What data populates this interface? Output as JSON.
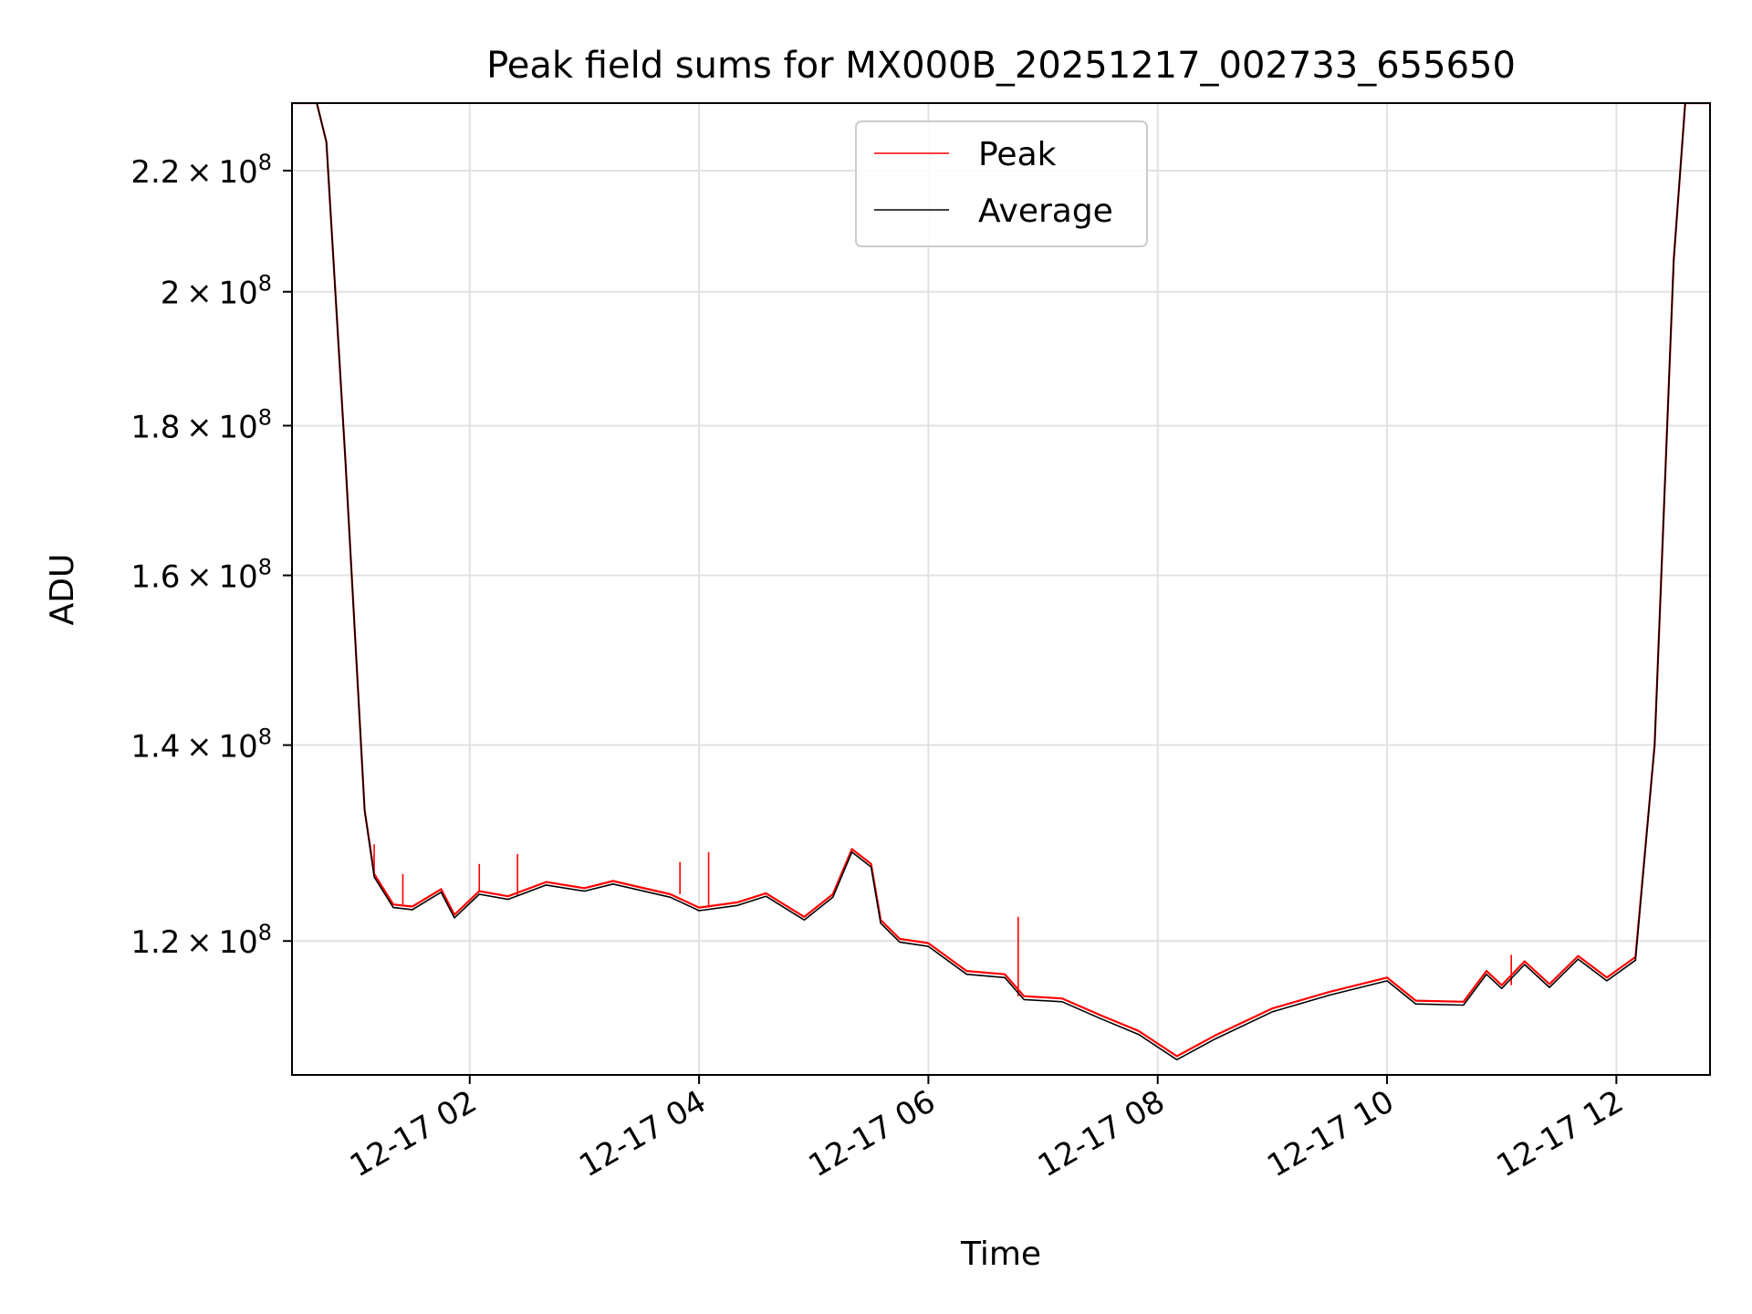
{
  "chart_data": {
    "type": "line",
    "title": "Peak field sums for MX000B_20251217_002733_655650",
    "xlabel": "Time",
    "ylabel": "ADU",
    "yscale": "log",
    "grid": true,
    "legend_position": "top-center",
    "x_range": [
      "2025-12-17 00:27",
      "2025-12-17 12:49"
    ],
    "ylim": [
      108000000,
      232000000
    ],
    "x_ticks": [
      {
        "value": "2025-12-17 02:00",
        "label": "12-17 02"
      },
      {
        "value": "2025-12-17 04:00",
        "label": "12-17 04"
      },
      {
        "value": "2025-12-17 06:00",
        "label": "12-17 06"
      },
      {
        "value": "2025-12-17 08:00",
        "label": "12-17 08"
      },
      {
        "value": "2025-12-17 10:00",
        "label": "12-17 10"
      },
      {
        "value": "2025-12-17 12:00",
        "label": "12-17 12"
      }
    ],
    "y_ticks": [
      {
        "value": 120000000,
        "mantissa": "1.2",
        "exponent": "8"
      },
      {
        "value": 140000000,
        "mantissa": "1.4",
        "exponent": "8"
      },
      {
        "value": 160000000,
        "mantissa": "1.6",
        "exponent": "8"
      },
      {
        "value": 180000000,
        "mantissa": "1.8",
        "exponent": "8"
      },
      {
        "value": 200000000,
        "mantissa": "2",
        "exponent": "8"
      },
      {
        "value": 220000000,
        "mantissa": "2.2",
        "exponent": "8"
      }
    ],
    "series": [
      {
        "name": "Peak",
        "color": "#ff0000",
        "points": [
          [
            "2025-12-17 00:27",
            232000000
          ],
          [
            "2025-12-17 00:40",
            232000000
          ],
          [
            "2025-12-17 00:45",
            225000000
          ],
          [
            "2025-12-17 00:55",
            175000000
          ],
          [
            "2025-12-17 01:05",
            133000000
          ],
          [
            "2025-12-17 01:10",
            126500000
          ],
          [
            "2025-12-17 01:20",
            123500000
          ],
          [
            "2025-12-17 01:30",
            123300000
          ],
          [
            "2025-12-17 01:45",
            125000000
          ],
          [
            "2025-12-17 01:52",
            122500000
          ],
          [
            "2025-12-17 02:05",
            124800000
          ],
          [
            "2025-12-17 02:20",
            124300000
          ],
          [
            "2025-12-17 02:40",
            125700000
          ],
          [
            "2025-12-17 03:00",
            125100000
          ],
          [
            "2025-12-17 03:15",
            125800000
          ],
          [
            "2025-12-17 03:45",
            124500000
          ],
          [
            "2025-12-17 04:00",
            123200000
          ],
          [
            "2025-12-17 04:20",
            123700000
          ],
          [
            "2025-12-17 04:35",
            124600000
          ],
          [
            "2025-12-17 04:55",
            122300000
          ],
          [
            "2025-12-17 05:10",
            124500000
          ],
          [
            "2025-12-17 05:20",
            129000000
          ],
          [
            "2025-12-17 05:30",
            127500000
          ],
          [
            "2025-12-17 05:35",
            122000000
          ],
          [
            "2025-12-17 05:45",
            120200000
          ],
          [
            "2025-12-17 06:00",
            119800000
          ],
          [
            "2025-12-17 06:20",
            117200000
          ],
          [
            "2025-12-17 06:40",
            116900000
          ],
          [
            "2025-12-17 06:50",
            114900000
          ],
          [
            "2025-12-17 07:10",
            114700000
          ],
          [
            "2025-12-17 07:30",
            113200000
          ],
          [
            "2025-12-17 07:50",
            111800000
          ],
          [
            "2025-12-17 08:10",
            109600000
          ],
          [
            "2025-12-17 08:30",
            111400000
          ],
          [
            "2025-12-17 09:00",
            113800000
          ],
          [
            "2025-12-17 09:30",
            115300000
          ],
          [
            "2025-12-17 10:00",
            116600000
          ],
          [
            "2025-12-17 10:15",
            114500000
          ],
          [
            "2025-12-17 10:40",
            114400000
          ],
          [
            "2025-12-17 10:52",
            117200000
          ],
          [
            "2025-12-17 11:00",
            115900000
          ],
          [
            "2025-12-17 11:12",
            118100000
          ],
          [
            "2025-12-17 11:25",
            116000000
          ],
          [
            "2025-12-17 11:40",
            118600000
          ],
          [
            "2025-12-17 11:55",
            116600000
          ],
          [
            "2025-12-17 12:10",
            118500000
          ],
          [
            "2025-12-17 12:20",
            140000000
          ],
          [
            "2025-12-17 12:30",
            205000000
          ],
          [
            "2025-12-17 12:36",
            232000000
          ],
          [
            "2025-12-17 12:49",
            232000000
          ]
        ],
        "spikes": [
          [
            "2025-12-17 01:10",
            129500000
          ],
          [
            "2025-12-17 01:25",
            126500000
          ],
          [
            "2025-12-17 02:05",
            127500000
          ],
          [
            "2025-12-17 02:25",
            128500000
          ],
          [
            "2025-12-17 03:50",
            127700000
          ],
          [
            "2025-12-17 04:05",
            128700000
          ],
          [
            "2025-12-17 06:47",
            122300000
          ],
          [
            "2025-12-17 11:05",
            118700000
          ]
        ]
      },
      {
        "name": "Average",
        "color": "#000000",
        "points": [
          [
            "2025-12-17 00:27",
            232000000
          ],
          [
            "2025-12-17 00:40",
            232000000
          ],
          [
            "2025-12-17 00:45",
            225000000
          ],
          [
            "2025-12-17 00:55",
            175000000
          ],
          [
            "2025-12-17 01:05",
            133000000
          ],
          [
            "2025-12-17 01:10",
            126200000
          ],
          [
            "2025-12-17 01:20",
            123200000
          ],
          [
            "2025-12-17 01:30",
            123000000
          ],
          [
            "2025-12-17 01:45",
            124700000
          ],
          [
            "2025-12-17 01:52",
            122200000
          ],
          [
            "2025-12-17 02:05",
            124500000
          ],
          [
            "2025-12-17 02:20",
            124000000
          ],
          [
            "2025-12-17 02:40",
            125400000
          ],
          [
            "2025-12-17 03:00",
            124800000
          ],
          [
            "2025-12-17 03:15",
            125500000
          ],
          [
            "2025-12-17 03:45",
            124200000
          ],
          [
            "2025-12-17 04:00",
            122900000
          ],
          [
            "2025-12-17 04:20",
            123400000
          ],
          [
            "2025-12-17 04:35",
            124300000
          ],
          [
            "2025-12-17 04:55",
            122000000
          ],
          [
            "2025-12-17 05:10",
            124200000
          ],
          [
            "2025-12-17 05:20",
            128700000
          ],
          [
            "2025-12-17 05:30",
            127200000
          ],
          [
            "2025-12-17 05:35",
            121700000
          ],
          [
            "2025-12-17 05:45",
            119900000
          ],
          [
            "2025-12-17 06:00",
            119500000
          ],
          [
            "2025-12-17 06:20",
            116900000
          ],
          [
            "2025-12-17 06:40",
            116600000
          ],
          [
            "2025-12-17 06:50",
            114600000
          ],
          [
            "2025-12-17 07:10",
            114400000
          ],
          [
            "2025-12-17 07:30",
            112900000
          ],
          [
            "2025-12-17 07:50",
            111500000
          ],
          [
            "2025-12-17 08:10",
            109300000
          ],
          [
            "2025-12-17 08:30",
            111100000
          ],
          [
            "2025-12-17 09:00",
            113500000
          ],
          [
            "2025-12-17 09:30",
            115000000
          ],
          [
            "2025-12-17 10:00",
            116300000
          ],
          [
            "2025-12-17 10:15",
            114200000
          ],
          [
            "2025-12-17 10:40",
            114100000
          ],
          [
            "2025-12-17 10:52",
            116900000
          ],
          [
            "2025-12-17 11:00",
            115600000
          ],
          [
            "2025-12-17 11:12",
            117800000
          ],
          [
            "2025-12-17 11:25",
            115700000
          ],
          [
            "2025-12-17 11:40",
            118300000
          ],
          [
            "2025-12-17 11:55",
            116300000
          ],
          [
            "2025-12-17 12:10",
            118200000
          ],
          [
            "2025-12-17 12:20",
            140000000
          ],
          [
            "2025-12-17 12:30",
            205000000
          ],
          [
            "2025-12-17 12:36",
            232000000
          ],
          [
            "2025-12-17 12:49",
            232000000
          ]
        ]
      }
    ]
  }
}
